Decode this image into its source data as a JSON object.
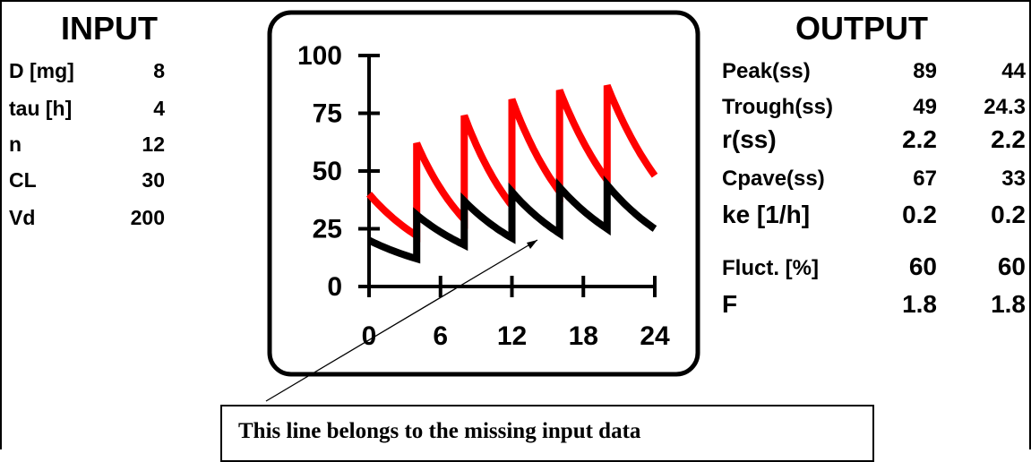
{
  "input": {
    "title": "INPUT",
    "rows": [
      {
        "label": "D [mg]",
        "value": "8"
      },
      {
        "label": "tau [h]",
        "value": "4"
      },
      {
        "label": "n",
        "value": "12"
      },
      {
        "label": "CL",
        "value": "30"
      },
      {
        "label": "Vd",
        "value": "200"
      }
    ]
  },
  "output": {
    "title": "OUTPUT",
    "rows": [
      {
        "label": "Peak(ss)",
        "v1": "89",
        "v2": "44"
      },
      {
        "label": "Trough(ss)",
        "v1": "49",
        "v2": "24.3"
      },
      {
        "label": "r(ss)",
        "v1": "2.2",
        "v2": "2.2"
      },
      {
        "label": "Cpave(ss)",
        "v1": "67",
        "v2": "33"
      },
      {
        "label": "ke [1/h]",
        "v1": "0.2",
        "v2": "0.2"
      },
      {
        "label": "Fluct. [%]",
        "v1": "60",
        "v2": "60"
      },
      {
        "label": "F",
        "v1": "1.8",
        "v2": "1.8"
      }
    ]
  },
  "annotation": {
    "text": "This line belongs to the missing input data"
  },
  "colors": {
    "series_red": "#ff0000",
    "series_black": "#000000"
  },
  "chart_data": {
    "type": "line",
    "title": "",
    "xlabel": "",
    "ylabel": "",
    "xlim": [
      0,
      24
    ],
    "ylim": [
      0,
      100
    ],
    "x_ticks": [
      "0",
      "6",
      "12",
      "18",
      "24"
    ],
    "y_ticks": [
      "100",
      "75",
      "50",
      "25",
      "0"
    ],
    "grid": false,
    "legend": "none",
    "series": [
      {
        "color": "#ff0000",
        "x": [
          0,
          4,
          4,
          8,
          8,
          12,
          12,
          16,
          16,
          20,
          20,
          24
        ],
        "y": [
          40,
          22,
          62,
          29,
          74,
          35,
          81,
          41,
          85,
          46,
          87,
          48
        ]
      },
      {
        "color": "#000000",
        "x": [
          0,
          4,
          4,
          8,
          8,
          12,
          12,
          16,
          16,
          20,
          20,
          24
        ],
        "y": [
          20,
          12,
          31,
          18,
          37,
          21,
          41,
          23,
          43,
          25,
          44,
          25
        ]
      }
    ]
  }
}
